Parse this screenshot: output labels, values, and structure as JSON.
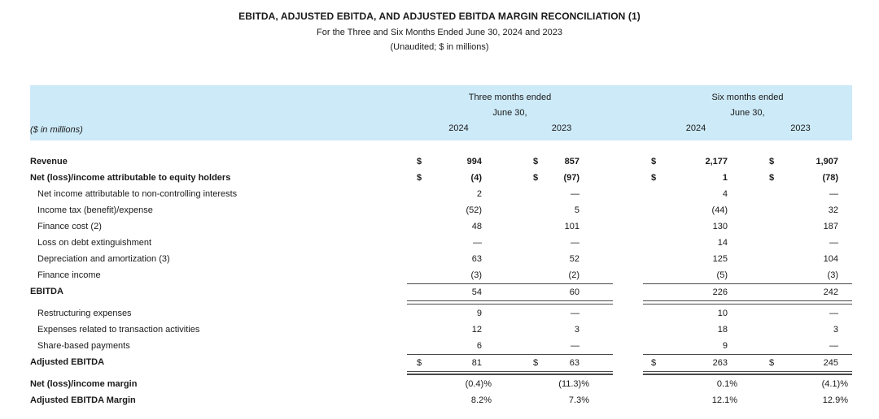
{
  "header": {
    "title": "EBITDA, ADJUSTED EBITDA, AND ADJUSTED EBITDA MARGIN RECONCILIATION (1)",
    "subtitle": "For the Three and Six Months Ended June 30, 2024 and 2023",
    "note": "(Unaudited; $ in millions)"
  },
  "table": {
    "band_color": "#cdeaf8",
    "rule_color": "#4a4a4a",
    "text_color": "#1a1a1a",
    "units_label": "($ in millions)",
    "dollar_symbol": "$",
    "col_groups": [
      {
        "line1": "Three months ended",
        "line2": "June 30,",
        "years": [
          "2024",
          "2023"
        ]
      },
      {
        "line1": "Six months ended",
        "line2": "June 30,",
        "years": [
          "2024",
          "2023"
        ]
      }
    ],
    "rows": [
      {
        "label": "Revenue",
        "bold_label": true,
        "bold_values": true,
        "dollar": true,
        "values": [
          "994",
          "857",
          "2,177",
          "1,907"
        ]
      },
      {
        "label": "Net (loss)/income attributable to equity holders",
        "bold_label": true,
        "bold_values": true,
        "dollar": true,
        "values": [
          "(4)",
          "(97)",
          "1",
          "(78)"
        ]
      },
      {
        "label": "Net income attributable to non-controlling interests",
        "indent": true,
        "values": [
          "2",
          "—",
          "4",
          "—"
        ]
      },
      {
        "label": "Income tax (benefit)/expense",
        "indent": true,
        "values": [
          "(52)",
          "5",
          "(44)",
          "32"
        ]
      },
      {
        "label": "Finance cost (2)",
        "indent": true,
        "values": [
          "48",
          "101",
          "130",
          "187"
        ]
      },
      {
        "label": "Loss on debt extinguishment",
        "indent": true,
        "values": [
          "—",
          "—",
          "14",
          "—"
        ]
      },
      {
        "label": "Depreciation and amortization (3)",
        "indent": true,
        "values": [
          "63",
          "52",
          "125",
          "104"
        ]
      },
      {
        "label": "Finance income",
        "indent": true,
        "values": [
          "(3)",
          "(2)",
          "(5)",
          "(3)"
        ]
      },
      {
        "label": "EBITDA",
        "bold_label": true,
        "rule_top": true,
        "rule_below": "double",
        "values": [
          "54",
          "60",
          "226",
          "242"
        ]
      },
      {
        "label": "Restructuring expenses",
        "indent": true,
        "values": [
          "9",
          "—",
          "10",
          "—"
        ]
      },
      {
        "label": "Expenses related to transaction activities",
        "indent": true,
        "values": [
          "12",
          "3",
          "18",
          "3"
        ]
      },
      {
        "label": "Share-based payments",
        "indent": true,
        "values": [
          "6",
          "—",
          "9",
          "—"
        ]
      },
      {
        "label": "Adjusted EBITDA",
        "bold_label": true,
        "dollar": true,
        "rule_top": true,
        "rule_below": "double-thick",
        "values": [
          "81",
          "63",
          "263",
          "245"
        ]
      },
      {
        "label": "Net (loss)/income margin",
        "bold_label": true,
        "percent": true,
        "values": [
          "(0.4)%",
          "(11.3)%",
          "0.1%",
          "(4.1)%"
        ]
      },
      {
        "label": "Adjusted EBITDA Margin",
        "bold_label": true,
        "percent": true,
        "values": [
          "8.2%",
          "7.3%",
          "12.1%",
          "12.9%"
        ]
      }
    ]
  }
}
